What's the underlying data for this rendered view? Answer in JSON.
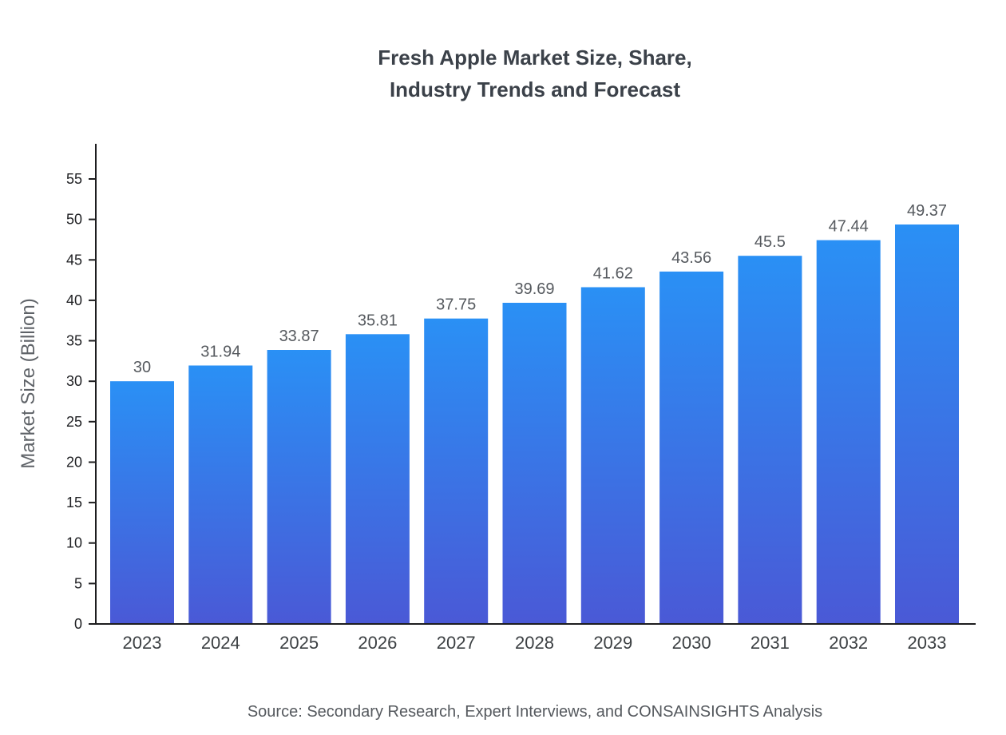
{
  "title": {
    "lines": [
      "Fresh Apple Market Size, Share,",
      "Industry Trends and Forecast"
    ]
  },
  "source": "Source: Secondary Research, Expert Interviews, and CONSAINSIGHTS Analysis",
  "chart_data": {
    "type": "bar",
    "title": "Fresh Apple Market Size, Share, Industry Trends and Forecast",
    "categories": [
      "2023",
      "2024",
      "2025",
      "2026",
      "2027",
      "2028",
      "2029",
      "2030",
      "2031",
      "2032",
      "2033"
    ],
    "values": [
      30,
      31.94,
      33.87,
      35.81,
      37.75,
      39.69,
      41.62,
      43.56,
      45.5,
      47.44,
      49.37
    ],
    "value_labels": [
      "30",
      "31.94",
      "33.87",
      "35.81",
      "37.75",
      "39.69",
      "41.62",
      "43.56",
      "45.5",
      "47.44",
      "49.37"
    ],
    "xlabel": "",
    "ylabel": "Market Size (Billion)",
    "ylim": [
      0,
      59
    ],
    "yticks": [
      0,
      5,
      10,
      15,
      20,
      25,
      30,
      35,
      40,
      45,
      50,
      55
    ],
    "grid": false,
    "legend": "none",
    "colors": {
      "bar_top": "#2a90f5",
      "bar_bottom": "#4a59d6",
      "axis": "#1d1d1f",
      "tick_label": "#202124",
      "category_label": "#3c4043",
      "value_label": "#55595e",
      "title": "#3b4149",
      "ylabel": "#5f6368",
      "source": "#55595e"
    }
  }
}
